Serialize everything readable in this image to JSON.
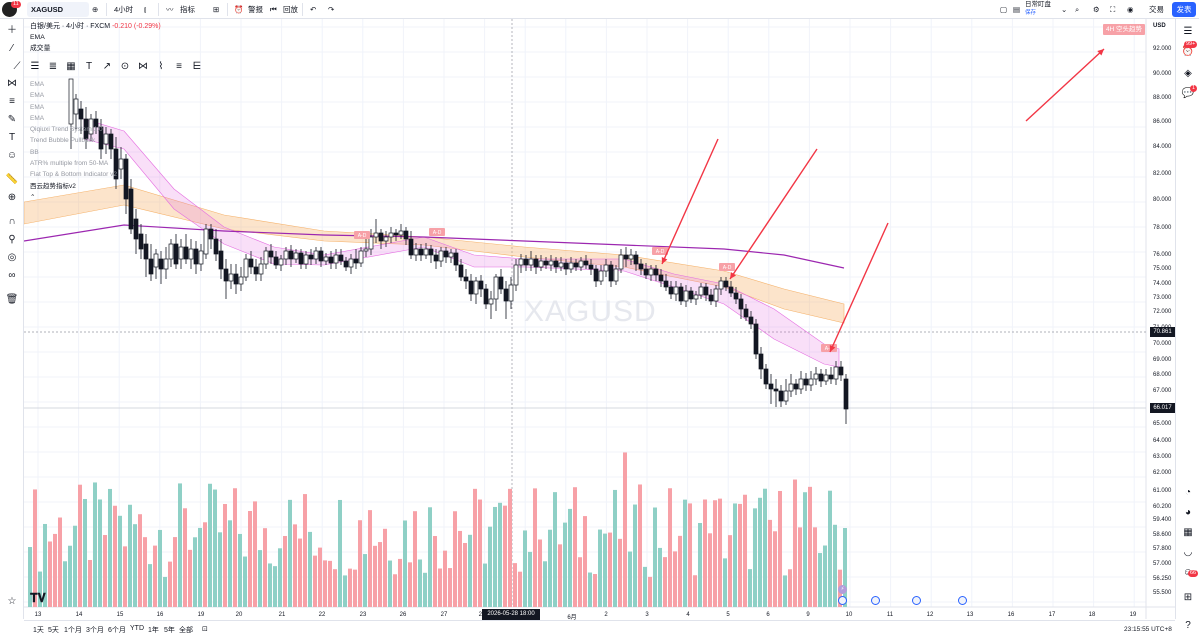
{
  "topbar": {
    "avatar_badge": "11",
    "symbol": "XAGUSD",
    "interval": "4小时",
    "indicators_label": "指标",
    "alert_label": "警报",
    "replay_label": "回放",
    "exchange_name": "日常盯盘",
    "exchange_sub": "保存",
    "trade_label": "交易",
    "publish_label": "发表"
  },
  "legend": {
    "title": "白银/美元 · 4小时 · FXCM",
    "change": "-0.210 (-0.29%)",
    "line1": "EMA",
    "line2": "成交量",
    "indicators": [
      "EMA",
      "EMA",
      "EMA",
      "EMA",
      "Qiqiuxi Trend System 1.0",
      "Trend Bubble Pullback",
      "BB",
      "ATR% multiple from 50-MA",
      "Flat Top & Bottom Indicator v2"
    ],
    "last_indicator": "西云趋势指标v2"
  },
  "watermark": "XAGUSD",
  "trend_tag": "4H 空头趋势",
  "signal_label": "A-D",
  "price_axis": {
    "currency": "USD",
    "labels": [
      "92.000",
      "90.000",
      "88.000",
      "86.000",
      "84.000",
      "82.000",
      "80.000",
      "78.000",
      "76.000",
      "75.000",
      "74.000",
      "73.000",
      "72.000",
      "71.000",
      "70.000",
      "69.000",
      "68.000",
      "67.000",
      "65.000",
      "64.000",
      "63.000",
      "62.000",
      "61.000",
      "60.200",
      "59.400",
      "58.600",
      "57.800",
      "57.000",
      "56.250",
      "55.500"
    ],
    "tag_high": "70.861",
    "tag_low": "66.017"
  },
  "time_axis": {
    "labels": [
      "13",
      "14",
      "15",
      "16",
      "19",
      "20",
      "21",
      "22",
      "23",
      "26",
      "27",
      "28",
      "6月",
      "2",
      "3",
      "4",
      "5",
      "6",
      "9",
      "10",
      "11",
      "12",
      "13",
      "16",
      "17",
      "18",
      "19"
    ],
    "crosshair": "2026-05-28 18:00"
  },
  "bottombar": {
    "ranges": [
      "1天",
      "5天",
      "1个月",
      "3个月",
      "6个月",
      "YTD",
      "1年",
      "5年",
      "全部"
    ],
    "clock": "23:15:55 UTC+8"
  },
  "right_badges": {
    "notifications": "99+",
    "alerts": "1",
    "community": "66"
  },
  "colors": {
    "up": "#26a69a",
    "down": "#131722",
    "vol_up": "#8fd0c6",
    "vol_down": "#f7a1a7",
    "ema_long": "#9c27b0",
    "band_orange": "#f5b26b",
    "band_pink": "#e56fe1",
    "arrow": "#f23645"
  }
}
